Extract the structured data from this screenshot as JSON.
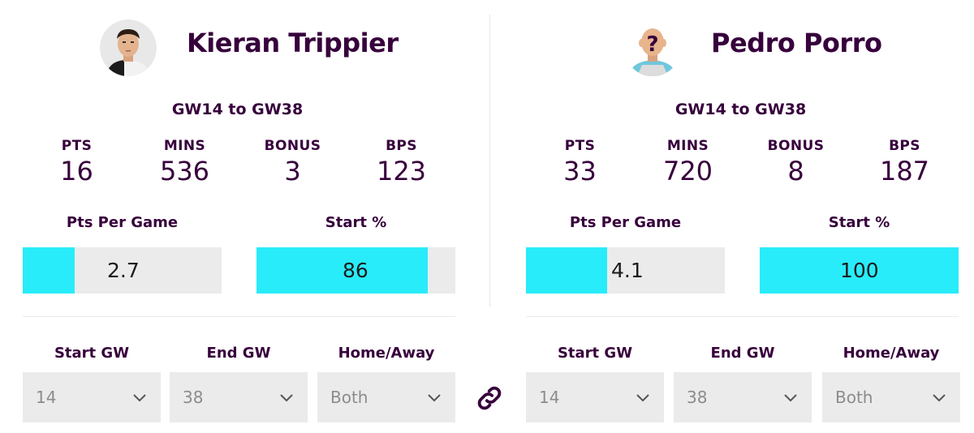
{
  "colors": {
    "accent": "#29ecfa",
    "text": "#37003c",
    "bar_bg": "#ebebeb",
    "select_text": "#8c8c8c"
  },
  "link_icon": "link-icon",
  "players": [
    {
      "name": "Kieran Trippier",
      "avatar": "player-photo",
      "range": "GW14 to GW38",
      "stats": [
        {
          "label": "PTS",
          "value": "16"
        },
        {
          "label": "MINS",
          "value": "536"
        },
        {
          "label": "BONUS",
          "value": "3"
        },
        {
          "label": "BPS",
          "value": "123"
        }
      ],
      "ppg": {
        "label": "Pts Per Game",
        "value": "2.7",
        "fill_percent": 26
      },
      "start": {
        "label": "Start %",
        "value": "86",
        "fill_percent": 86
      },
      "filters": [
        {
          "label": "Start GW",
          "value": "14"
        },
        {
          "label": "End GW",
          "value": "38"
        },
        {
          "label": "Home/Away",
          "value": "Both"
        }
      ]
    },
    {
      "name": "Pedro Porro",
      "avatar": "unknown-player-photo",
      "range": "GW14 to GW38",
      "stats": [
        {
          "label": "PTS",
          "value": "33"
        },
        {
          "label": "MINS",
          "value": "720"
        },
        {
          "label": "BONUS",
          "value": "8"
        },
        {
          "label": "BPS",
          "value": "187"
        }
      ],
      "ppg": {
        "label": "Pts Per Game",
        "value": "4.1",
        "fill_percent": 41
      },
      "start": {
        "label": "Start %",
        "value": "100",
        "fill_percent": 100
      },
      "filters": [
        {
          "label": "Start GW",
          "value": "14"
        },
        {
          "label": "End GW",
          "value": "38"
        },
        {
          "label": "Home/Away",
          "value": "Both"
        }
      ]
    }
  ]
}
